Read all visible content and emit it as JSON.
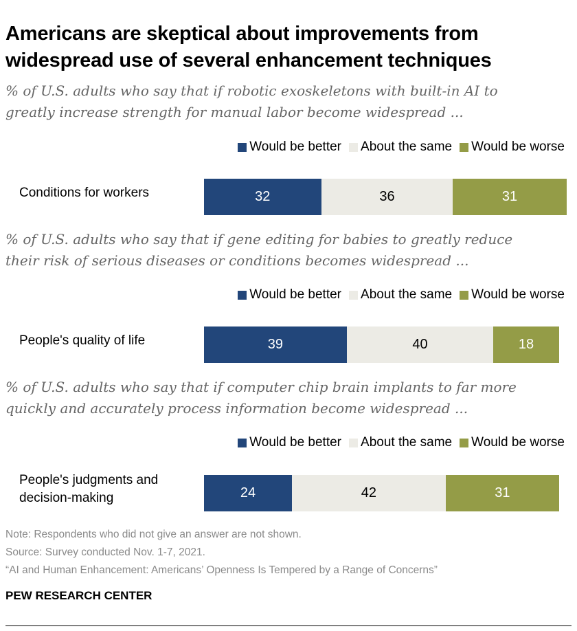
{
  "title_lines": [
    "Americans are skeptical about improvements from",
    "widespread use of several enhancement techniques"
  ],
  "legend": [
    "Would be better",
    "About the same",
    "Would be worse"
  ],
  "colors": {
    "better": "#22467a",
    "same": "#ecebe5",
    "worse": "#949c47"
  },
  "chart_data": {
    "type": "bar",
    "stacked": true,
    "orientation": "horizontal",
    "title": "Americans are skeptical about improvements from widespread use of several enhancement techniques",
    "legend_entries": [
      "Would be better",
      "About the same",
      "Would be worse"
    ],
    "legend_placement": "top-right",
    "panels": [
      {
        "subtitle_lines": [
          "% of U.S. adults who say that if robotic exoskeletons with built-in AI to",
          "greatly increase strength for manual labor become widespread ..."
        ],
        "category_lines": [
          "Conditions for workers"
        ],
        "values": [
          32,
          36,
          31
        ]
      },
      {
        "subtitle_lines": [
          "% of U.S. adults who say that if gene editing for babies to greatly reduce",
          "their risk of serious diseases or conditions becomes widespread ..."
        ],
        "category_lines": [
          "People's quality of life"
        ],
        "values": [
          39,
          40,
          18
        ]
      },
      {
        "subtitle_lines": [
          "% of U.S. adults who say that if computer chip brain implants to far more",
          "quickly and accurately process information become widespread ..."
        ],
        "category_lines": [
          "People's judgments and",
          "decision-making"
        ],
        "values": [
          24,
          42,
          31
        ]
      }
    ]
  },
  "notes": [
    "Note: Respondents who did not give an answer are not shown.",
    "Source: Survey conducted Nov. 1-7, 2021.",
    "“AI and Human Enhancement: Americans’ Openness Is Tempered by a Range of Concerns”"
  ],
  "brand": "PEW RESEARCH CENTER"
}
